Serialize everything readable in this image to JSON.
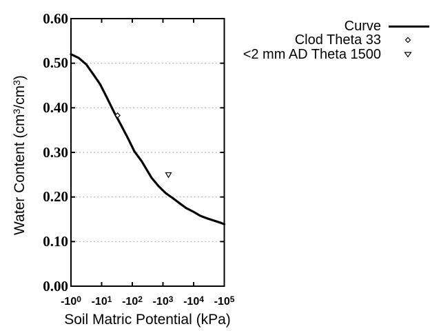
{
  "chart_data": {
    "type": "line",
    "title": "",
    "xlabel": "Soil Matric Potential (kPa)",
    "ylabel": "Water Content (cm3/cm3)",
    "x_scale": "log10 of absolute matric potential (kPa), values negative",
    "xlim_log10_abs": [
      0,
      5
    ],
    "ylim": [
      0.0,
      0.6
    ],
    "y_tick_step": 0.1,
    "x_tick_labels": [
      {
        "base": "-10",
        "exp": "0"
      },
      {
        "base": "-10",
        "exp": "1"
      },
      {
        "base": "-10",
        "exp": "2"
      },
      {
        "base": "-10",
        "exp": "3"
      },
      {
        "base": "-10",
        "exp": "4"
      },
      {
        "base": "-10",
        "exp": "5"
      }
    ],
    "grid": "horizontal dotted",
    "legend_position": "top-right outside",
    "series": [
      {
        "name": "Curve",
        "type": "line",
        "points_log10abs_theta": [
          [
            0.0,
            0.52
          ],
          [
            0.25,
            0.512
          ],
          [
            0.5,
            0.497
          ],
          [
            0.72,
            0.476
          ],
          [
            0.95,
            0.453
          ],
          [
            1.17,
            0.423
          ],
          [
            1.4,
            0.391
          ],
          [
            1.62,
            0.363
          ],
          [
            1.85,
            0.333
          ],
          [
            2.07,
            0.302
          ],
          [
            2.3,
            0.281
          ],
          [
            2.63,
            0.243
          ],
          [
            2.86,
            0.224
          ],
          [
            3.08,
            0.209
          ],
          [
            3.31,
            0.198
          ],
          [
            3.54,
            0.186
          ],
          [
            3.76,
            0.175
          ],
          [
            3.99,
            0.167
          ],
          [
            4.21,
            0.158
          ],
          [
            4.44,
            0.152
          ],
          [
            4.66,
            0.147
          ],
          [
            4.89,
            0.142
          ],
          [
            5.0,
            0.139
          ]
        ]
      },
      {
        "name": "Clod Theta 33",
        "type": "scatter",
        "marker": "diamond-open",
        "points_log10abs_theta": [
          [
            1.52,
            0.383
          ]
        ]
      },
      {
        "name": "<2 mm AD Theta 1500",
        "type": "scatter",
        "marker": "triangle-down-open",
        "points_log10abs_theta": [
          [
            3.18,
            0.25
          ]
        ]
      }
    ]
  },
  "y_title": {
    "p1": "Water Content (cm",
    "s1": "3",
    "p2": "/cm",
    "s2": "3",
    "p3": ")"
  },
  "legend": {
    "items": [
      {
        "label": "Curve",
        "marker": "line-sample"
      },
      {
        "label": "Clod Theta 33",
        "marker": "diamond-open"
      },
      {
        "label": "<2 mm AD Theta 1500",
        "marker": "triangle-down-open"
      }
    ]
  },
  "colors": {
    "line": "#000000",
    "grid": "#a3a3a3",
    "background": "#ffffff"
  }
}
